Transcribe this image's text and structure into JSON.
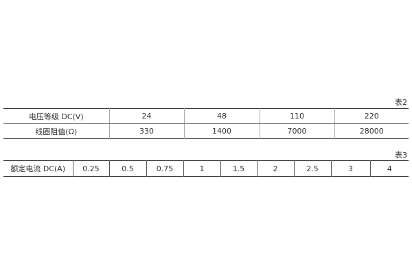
{
  "table2": {
    "caption": "表2",
    "rows": [
      {
        "label": "电压等级 DC(V)",
        "values": [
          "24",
          "48",
          "110",
          "220"
        ]
      },
      {
        "label": "线圈阻值(Ω)",
        "values": [
          "330",
          "1400",
          "7000",
          "28000"
        ]
      }
    ]
  },
  "table3": {
    "caption": "表3",
    "label": "额定电流 DC(A)",
    "values": [
      "0.25",
      "0.5",
      "0.75",
      "1",
      "1.5",
      "2",
      "2.5",
      "3",
      "4"
    ]
  }
}
